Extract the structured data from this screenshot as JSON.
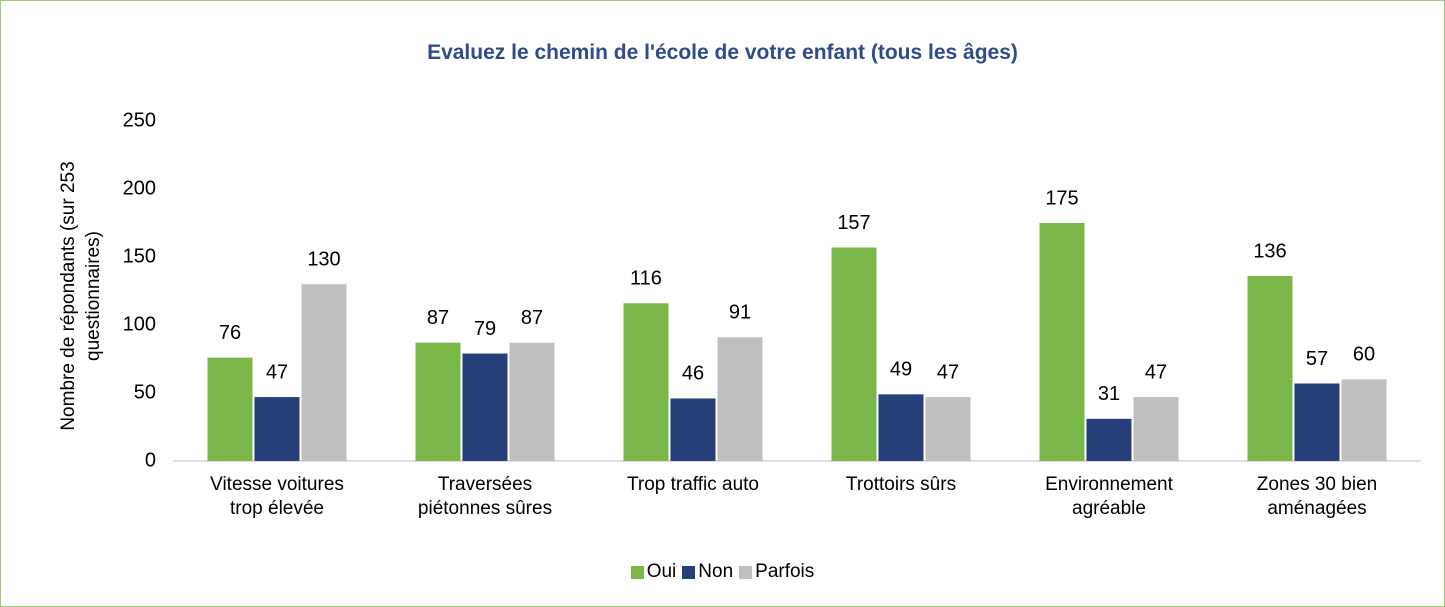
{
  "chart_data": {
    "type": "bar",
    "title": "Evaluez le chemin de l'école de votre enfant (tous les âges)",
    "y_label": "Nombre de répondants (sur 253 questionnaires)",
    "categories": [
      "Vitesse voitures trop élevée",
      "Traversées piétonnes sûres",
      "Trop traffic auto",
      "Trottoirs sûrs",
      "Environnement agréable",
      "Zones 30 bien aménagées"
    ],
    "series": [
      {
        "name": "Oui",
        "color": "#7ab648",
        "values": [
          76,
          87,
          116,
          157,
          175,
          136
        ]
      },
      {
        "name": "Non",
        "color": "#243f7a",
        "values": [
          47,
          79,
          46,
          49,
          31,
          57
        ]
      },
      {
        "name": "Parfois",
        "color": "#bfbfbf",
        "values": [
          130,
          87,
          91,
          47,
          47,
          60
        ]
      }
    ],
    "ylim": [
      0,
      250
    ],
    "yticks": [
      0,
      50,
      100,
      150,
      200,
      250
    ],
    "grid": false,
    "legend": "bottom"
  }
}
